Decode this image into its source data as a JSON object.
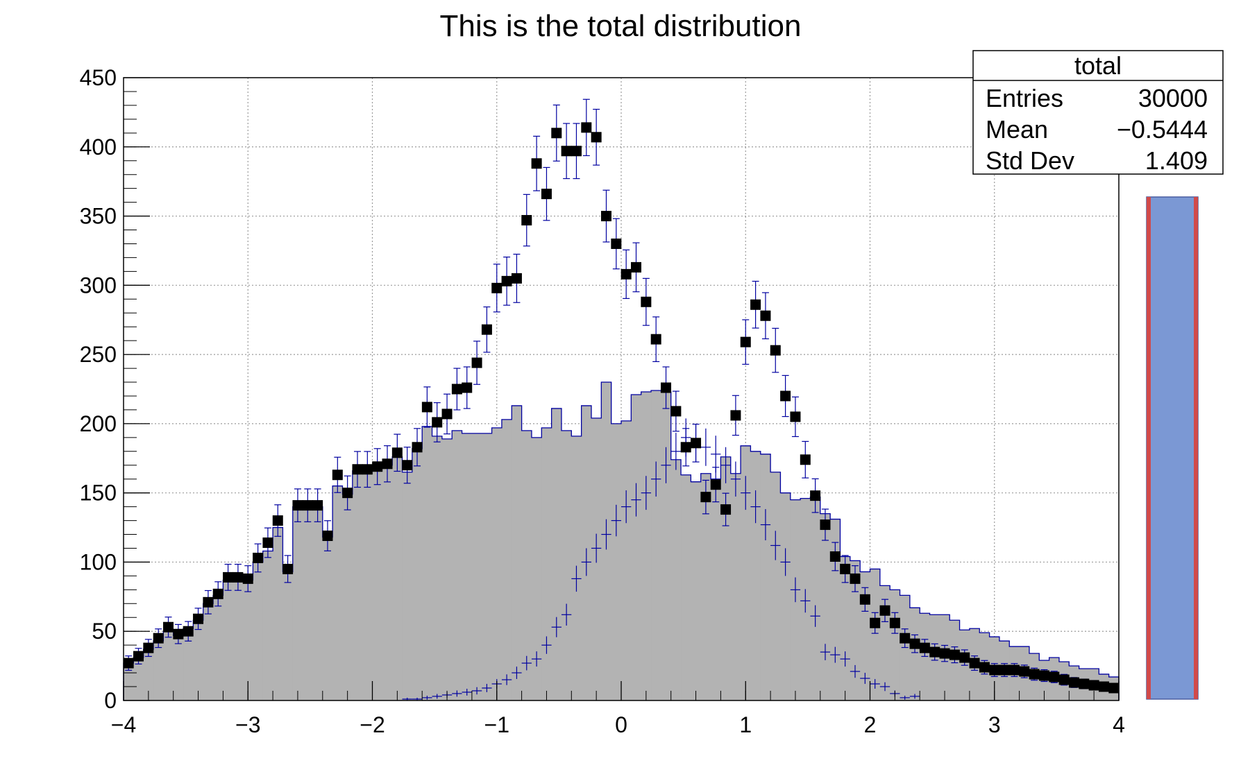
{
  "title": "This is the total distribution",
  "stats": {
    "name": "total",
    "rows": [
      {
        "label": "Entries",
        "value": "30000"
      },
      {
        "label": "Mean",
        "value": "−0.5444"
      },
      {
        "label": "Std Dev",
        "value": "1.409"
      }
    ]
  },
  "colors": {
    "fill": "#b3b3b3",
    "outline": "#0000a0",
    "marker": "#000000",
    "errorbar": "#0000a0",
    "grid": "#9a9a9a",
    "side_fill": "#7b98d4",
    "side_edge": "#d14a4a"
  },
  "chart_data": {
    "type": "bar",
    "xlim": [
      -4,
      4
    ],
    "ylim": [
      0,
      450
    ],
    "grid": true,
    "stats_box": "top-right",
    "xticks": [
      {
        "v": -4,
        "label": "−4"
      },
      {
        "v": -3,
        "label": "−3"
      },
      {
        "v": -2,
        "label": "−2"
      },
      {
        "v": -1,
        "label": "−1"
      },
      {
        "v": 0,
        "label": "0"
      },
      {
        "v": 1,
        "label": "1"
      },
      {
        "v": 2,
        "label": "2"
      },
      {
        "v": 3,
        "label": "3"
      },
      {
        "v": 4,
        "label": "4"
      }
    ],
    "yticks": [
      0,
      50,
      100,
      150,
      200,
      250,
      300,
      350,
      400,
      450
    ],
    "bin_edges": {
      "start": -4,
      "width": 0.08,
      "count": 100
    },
    "series": [
      {
        "style": "filled-histogram",
        "values": [
          27,
          31,
          37,
          43,
          50,
          47,
          52,
          58,
          70,
          76,
          87,
          88,
          87,
          100,
          108,
          125,
          93,
          140,
          140,
          140,
          118,
          155,
          149,
          166,
          166,
          168,
          170,
          176,
          165,
          182,
          198,
          191,
          189,
          195,
          193,
          193,
          193,
          197,
          203,
          213,
          195,
          190,
          197,
          211,
          195,
          191,
          213,
          204,
          230,
          200,
          202,
          221,
          223,
          224,
          223,
          174,
          163,
          158,
          164,
          160,
          176,
          164,
          184,
          180,
          178,
          165,
          150,
          145,
          146,
          147,
          135,
          131,
          104,
          101,
          93,
          95,
          83,
          80,
          76,
          67,
          63,
          62,
          62,
          58,
          51,
          52,
          49,
          46,
          43,
          39,
          39,
          34,
          29,
          31,
          28,
          25,
          23,
          23,
          19,
          17
        ]
      },
      {
        "style": "crosses",
        "values": [
          0,
          0,
          0,
          0,
          0,
          0,
          0,
          0,
          0,
          0,
          0,
          0,
          0,
          0,
          0,
          0,
          0,
          0,
          0,
          0,
          0,
          0,
          0,
          0,
          0,
          0,
          0,
          0,
          1,
          1,
          2,
          3,
          4,
          5,
          6,
          7,
          9,
          12,
          15,
          20,
          27,
          30,
          40,
          53,
          62,
          88,
          100,
          110,
          120,
          130,
          140,
          145,
          150,
          160,
          170,
          180,
          190,
          186,
          183,
          178,
          170,
          160,
          150,
          140,
          127,
          112,
          100,
          80,
          72,
          61,
          35,
          33,
          30,
          21,
          16,
          12,
          10,
          5,
          2,
          3,
          0,
          0,
          0,
          0,
          0,
          0,
          0,
          0,
          0,
          0,
          0,
          0,
          0,
          0,
          0,
          0,
          0,
          0,
          0,
          0
        ]
      },
      {
        "style": "markers",
        "values": [
          27,
          32,
          38,
          45,
          53,
          48,
          50,
          59,
          71,
          77,
          89,
          89,
          88,
          103,
          114,
          130,
          95,
          141,
          141,
          141,
          119,
          163,
          150,
          167,
          167,
          169,
          171,
          179,
          170,
          183,
          212,
          201,
          207,
          225,
          226,
          244,
          268,
          298,
          303,
          305,
          347,
          388,
          366,
          410,
          397,
          397,
          414,
          407,
          350,
          330,
          308,
          313,
          288,
          261,
          226,
          209,
          183,
          186,
          147,
          156,
          138,
          206,
          259,
          286,
          278,
          253,
          220,
          205,
          174,
          148,
          127,
          104,
          95,
          88,
          73,
          56,
          65,
          56,
          45,
          41,
          38,
          35,
          34,
          33,
          31,
          27,
          24,
          22,
          22,
          22,
          21,
          19,
          18,
          17,
          15,
          13,
          12,
          11,
          10,
          9
        ]
      }
    ]
  }
}
